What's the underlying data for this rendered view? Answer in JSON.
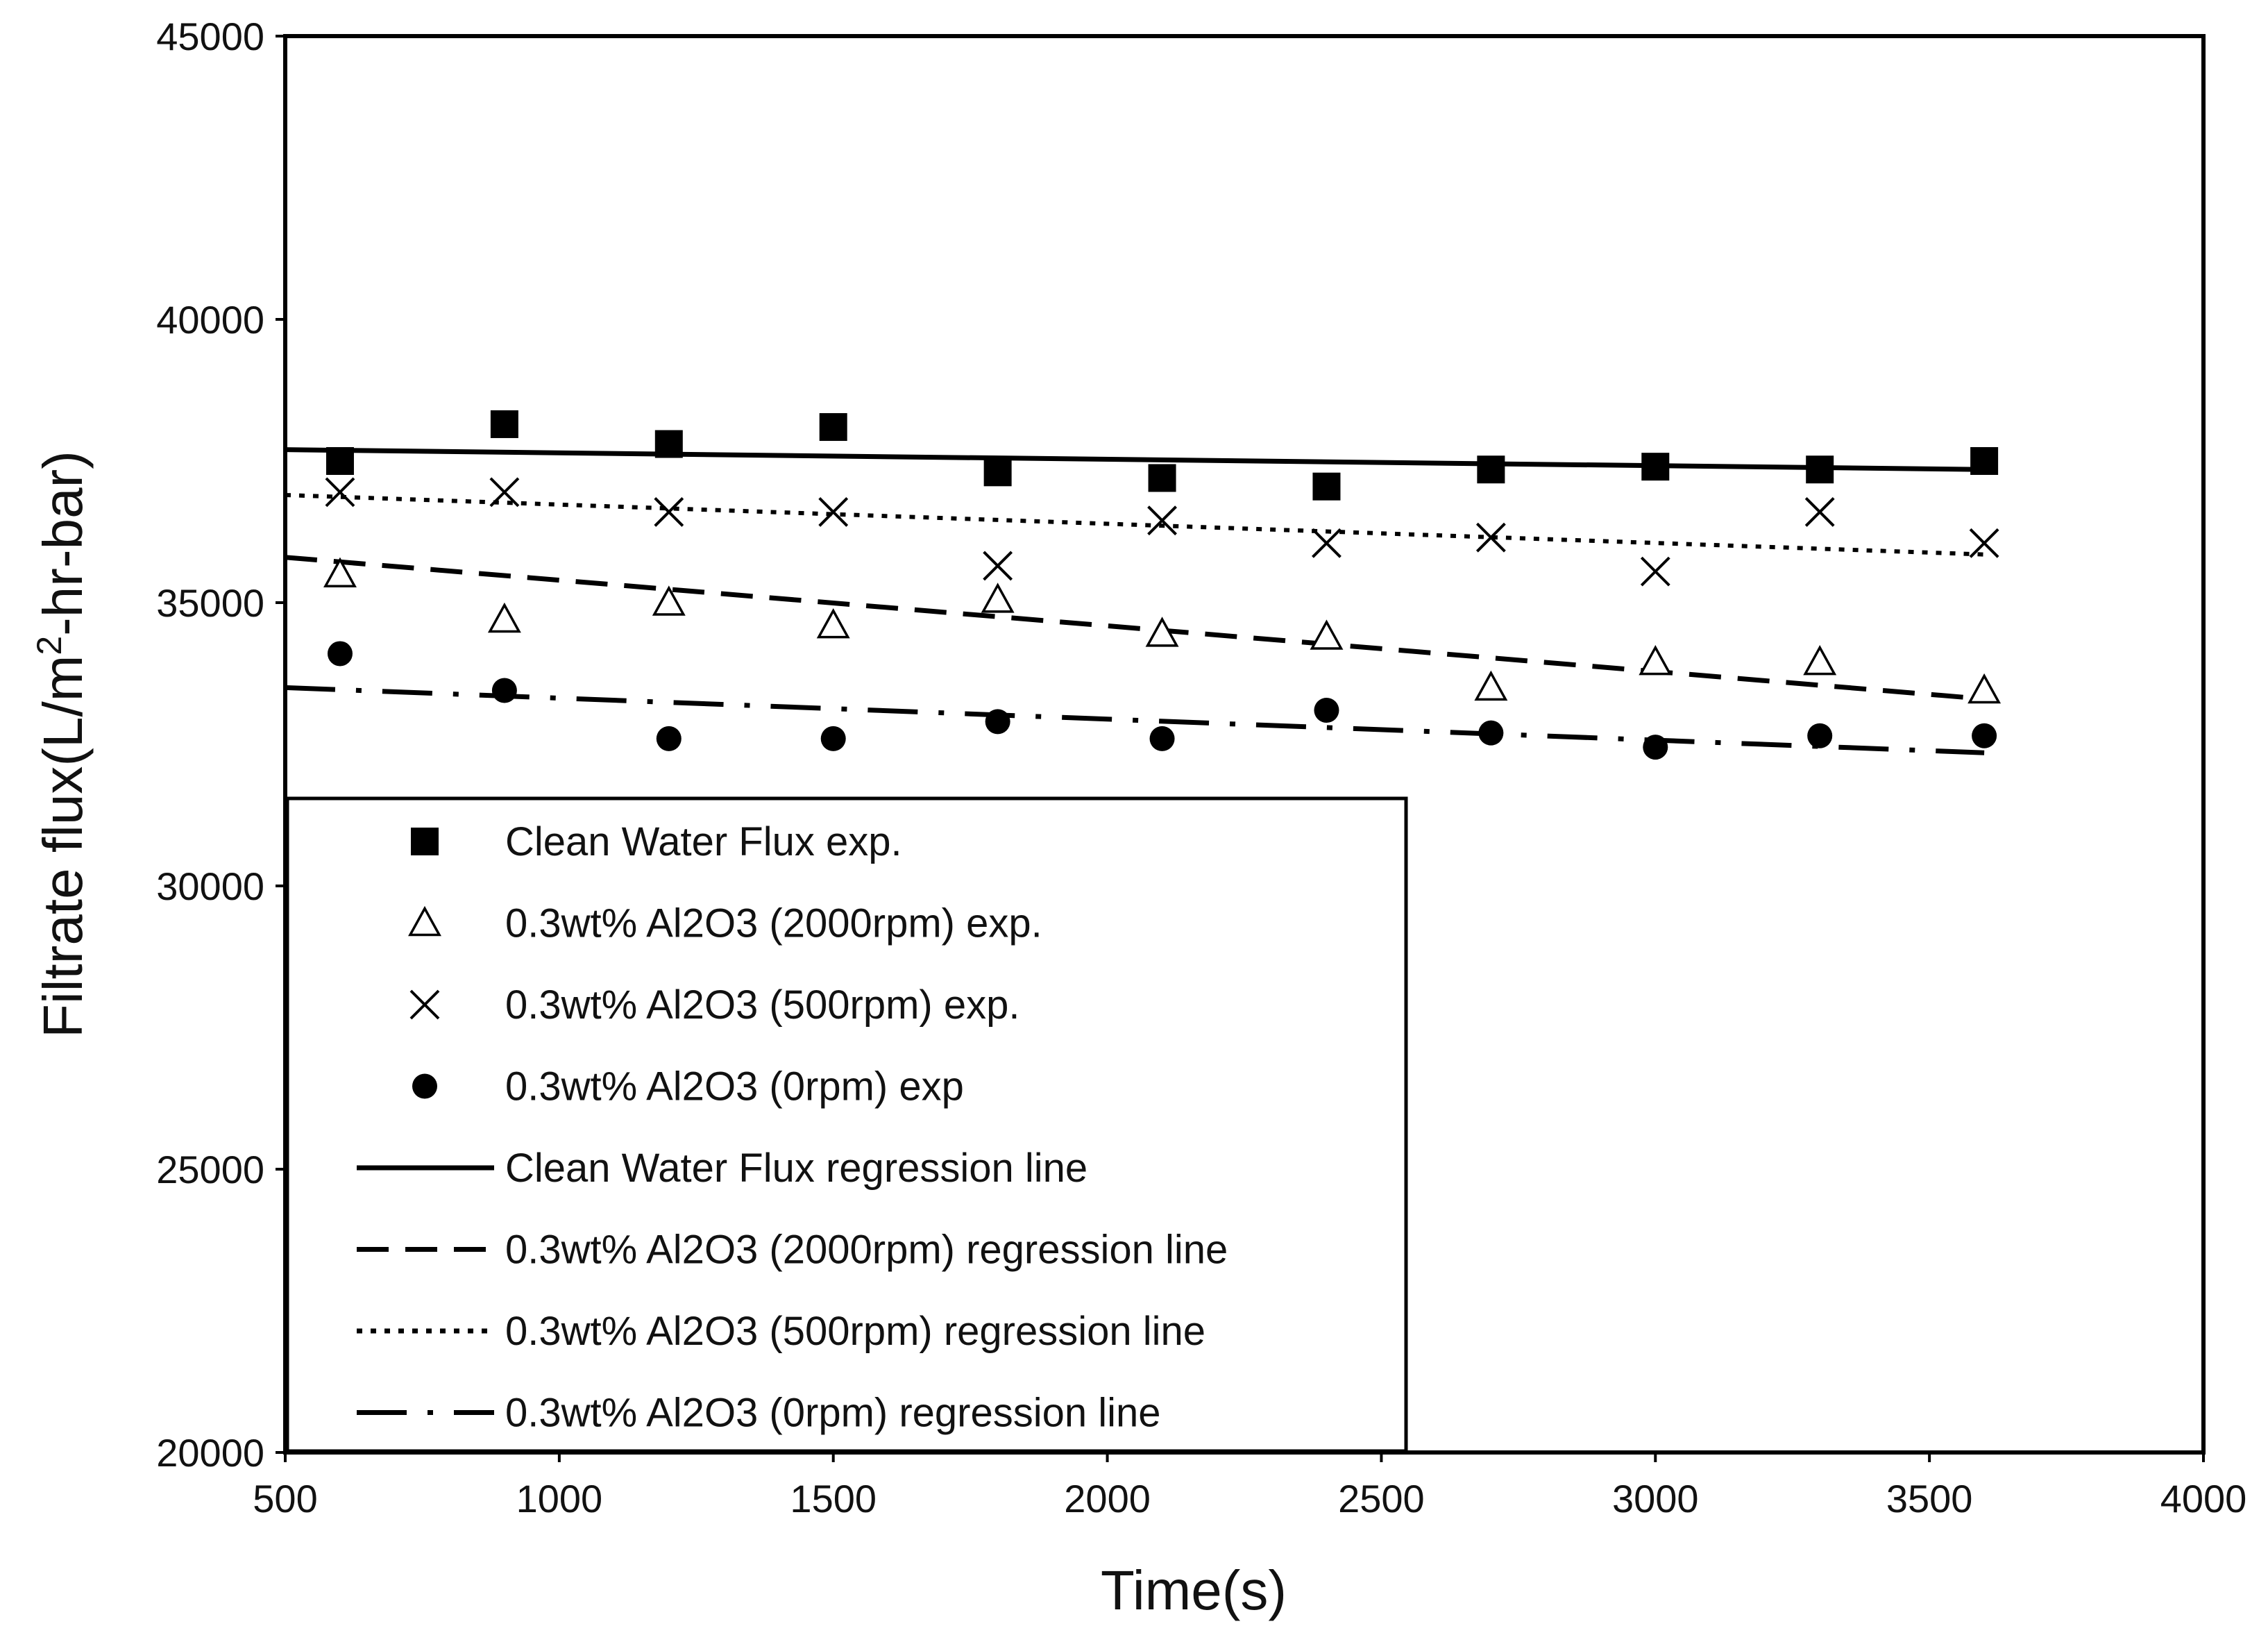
{
  "chart_data": {
    "type": "scatter",
    "title": "",
    "xlabel": "Time(s)",
    "ylabel_prefix": "Filtrate flux(L/m",
    "ylabel_sup": "2",
    "ylabel_suffix": "-hr-bar)",
    "xlim": [
      500,
      4000
    ],
    "ylim": [
      20000,
      45000
    ],
    "xticks": [
      500,
      1000,
      1500,
      2000,
      2500,
      3000,
      3500,
      4000
    ],
    "yticks": [
      20000,
      25000,
      30000,
      35000,
      40000,
      45000
    ],
    "grid": false,
    "legend_position": "bottom-left",
    "series": [
      {
        "name": "Clean Water Flux exp.",
        "kind": "points",
        "marker": "square",
        "x": [
          600,
          900,
          1200,
          1500,
          1800,
          2100,
          2400,
          2700,
          3000,
          3300,
          3600
        ],
        "y": [
          37500,
          38150,
          37800,
          38100,
          37300,
          37200,
          37050,
          37350,
          37400,
          37350,
          37500
        ]
      },
      {
        "name": "0.3wt% Al2O3 (2000rpm) exp.",
        "kind": "points",
        "marker": "triangle",
        "x": [
          600,
          900,
          1200,
          1500,
          1800,
          2100,
          2400,
          2700,
          3000,
          3300,
          3600
        ],
        "y": [
          35500,
          34700,
          35000,
          34600,
          35050,
          34450,
          34400,
          33500,
          33950,
          33950,
          33450
        ]
      },
      {
        "name": "0.3wt% Al2O3 (500rpm) exp.",
        "kind": "points",
        "marker": "x",
        "x": [
          600,
          900,
          1200,
          1500,
          1800,
          2100,
          2400,
          2700,
          3000,
          3300,
          3600
        ],
        "y": [
          36950,
          36950,
          36600,
          36600,
          35650,
          36450,
          36050,
          36150,
          35550,
          36600,
          36050
        ]
      },
      {
        "name": "0.3wt% Al2O3 (0rpm) exp",
        "kind": "points",
        "marker": "circle",
        "x": [
          600,
          900,
          1200,
          1500,
          1800,
          2100,
          2400,
          2700,
          3000,
          3300,
          3600
        ],
        "y": [
          34100,
          33450,
          32600,
          32600,
          32900,
          32600,
          33100,
          32700,
          32450,
          32650,
          32650
        ]
      },
      {
        "name": "Clean Water Flux regression line",
        "kind": "line",
        "style": "solid",
        "x": [
          500,
          3600
        ],
        "y": [
          37700,
          37350
        ]
      },
      {
        "name": "0.3wt% Al2O3 (2000rpm) regression line",
        "kind": "line",
        "style": "dashed",
        "x": [
          500,
          3600
        ],
        "y": [
          35800,
          33300
        ]
      },
      {
        "name": "0.3wt% Al2O3 (500rpm) regression line",
        "kind": "line",
        "style": "dotted",
        "x": [
          500,
          3600
        ],
        "y": [
          36900,
          35850
        ]
      },
      {
        "name": "0.3wt% Al2O3 (0rpm) regression line",
        "kind": "line",
        "style": "dashdot",
        "x": [
          500,
          3600
        ],
        "y": [
          33500,
          32350
        ]
      }
    ]
  }
}
